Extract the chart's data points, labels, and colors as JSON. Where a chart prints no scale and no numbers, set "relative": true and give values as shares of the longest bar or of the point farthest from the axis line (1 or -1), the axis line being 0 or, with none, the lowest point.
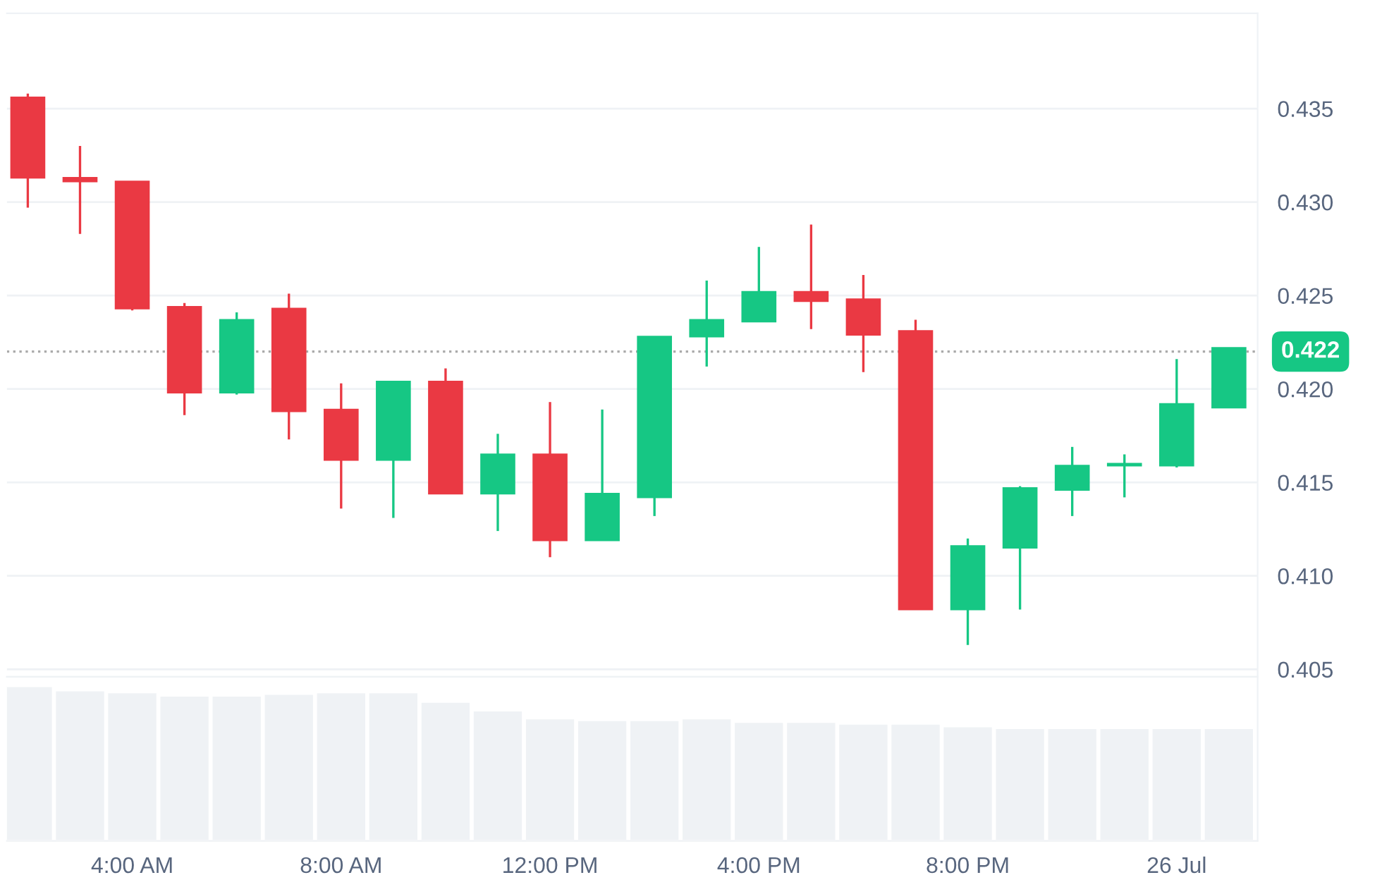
{
  "chart_data": [
    {
      "type": "candlestick",
      "x": [
        2,
        3,
        4,
        5,
        6,
        7,
        8,
        9,
        10,
        11,
        12,
        13,
        14,
        15,
        16,
        17,
        18,
        19,
        20,
        21,
        22,
        23,
        24,
        25
      ],
      "ohlc": [
        [
          0.4356,
          0.4358,
          0.4297,
          0.4313
        ],
        [
          0.4313,
          0.433,
          0.4283,
          0.4311
        ],
        [
          0.4311,
          0.4311,
          0.4242,
          0.4243
        ],
        [
          0.4244,
          0.4246,
          0.4186,
          0.4198
        ],
        [
          0.4198,
          0.4241,
          0.4197,
          0.4237
        ],
        [
          0.4243,
          0.4251,
          0.4173,
          0.4188
        ],
        [
          0.4189,
          0.4203,
          0.4136,
          0.4162
        ],
        [
          0.4162,
          0.4204,
          0.4131,
          0.4204
        ],
        [
          0.4204,
          0.4211,
          0.4144,
          0.4144
        ],
        [
          0.4144,
          0.4176,
          0.4124,
          0.4165
        ],
        [
          0.4165,
          0.4193,
          0.411,
          0.4119
        ],
        [
          0.4119,
          0.4189,
          0.4119,
          0.4144
        ],
        [
          0.4142,
          0.4228,
          0.4132,
          0.4228
        ],
        [
          0.4228,
          0.4258,
          0.4212,
          0.4237
        ],
        [
          0.4236,
          0.4276,
          0.4236,
          0.4252
        ],
        [
          0.4252,
          0.4288,
          0.4232,
          0.4247
        ],
        [
          0.4248,
          0.4261,
          0.4209,
          0.4229
        ],
        [
          0.4231,
          0.4237,
          0.4082,
          0.4082
        ],
        [
          0.4082,
          0.412,
          0.4063,
          0.4116
        ],
        [
          0.4115,
          0.4148,
          0.4082,
          0.4147
        ],
        [
          0.4146,
          0.4169,
          0.4132,
          0.4159
        ],
        [
          0.4159,
          0.4165,
          0.4142,
          0.416
        ],
        [
          0.4159,
          0.4216,
          0.4158,
          0.4192
        ],
        [
          0.419,
          0.4222,
          0.419,
          0.4222
        ]
      ],
      "colors": [
        "#ea3943",
        "#ea3943",
        "#ea3943",
        "#ea3943",
        "#16c784",
        "#ea3943",
        "#ea3943",
        "#16c784",
        "#ea3943",
        "#16c784",
        "#ea3943",
        "#16c784",
        "#16c784",
        "#16c784",
        "#16c784",
        "#ea3943",
        "#ea3943",
        "#ea3943",
        "#16c784",
        "#16c784",
        "#16c784",
        "#16c784",
        "#16c784",
        "#16c784"
      ],
      "xlim": [
        1.6,
        25.55
      ],
      "ylim": [
        0.4046,
        0.4401
      ],
      "yticks": [
        {
          "value": 0.405,
          "label": "0.405"
        },
        {
          "value": 0.41,
          "label": "0.410"
        },
        {
          "value": 0.415,
          "label": "0.415"
        },
        {
          "value": 0.42,
          "label": "0.420"
        },
        {
          "value": 0.425,
          "label": "0.425"
        },
        {
          "value": 0.43,
          "label": "0.430"
        },
        {
          "value": 0.435,
          "label": "0.435"
        }
      ],
      "ref_lines": [
        {
          "axis": "y",
          "value": 0.422,
          "label": "0.422",
          "color": "#aaaaaa",
          "line_style": "dotted"
        }
      ],
      "grid": "y",
      "tick_labels": "y"
    },
    {
      "type": "bar",
      "relative": true,
      "x": [
        2,
        3,
        4,
        5,
        6,
        7,
        8,
        9,
        10,
        11,
        12,
        13,
        14,
        15,
        16,
        17,
        18,
        19,
        20,
        21,
        22,
        23,
        24,
        25
      ],
      "values": [
        1,
        0.972,
        0.96,
        0.938,
        0.938,
        0.949,
        0.96,
        0.96,
        0.898,
        0.842,
        0.791,
        0.78,
        0.78,
        0.791,
        0.768,
        0.768,
        0.757,
        0.757,
        0.74,
        0.729,
        0.729,
        0.729,
        0.729,
        0.729
      ],
      "color": "#eff2f5",
      "xlim": [
        1.6,
        25.55
      ],
      "xticks": [
        {
          "value": 4,
          "label": "4:00 AM"
        },
        {
          "value": 8,
          "label": "8:00 AM"
        },
        {
          "value": 12,
          "label": "12:00 PM"
        },
        {
          "value": 16,
          "label": "4:00 PM"
        },
        {
          "value": 20,
          "label": "8:00 PM"
        },
        {
          "value": 24,
          "label": "26 Jul"
        }
      ],
      "tick_labels": "x"
    }
  ]
}
